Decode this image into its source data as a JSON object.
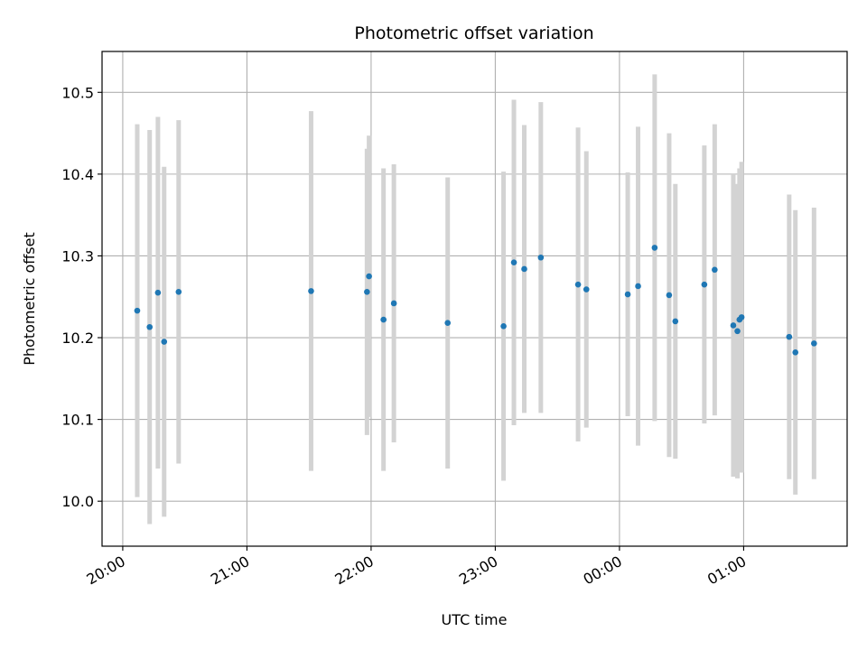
{
  "chart_data": {
    "type": "scatter",
    "title": "Photometric offset variation",
    "xlabel": "UTC time",
    "ylabel": "Photometric offset",
    "x_axis_kind": "time (hours, continuing past midnight)",
    "xlim": [
      "19:50",
      "25:50"
    ],
    "ylim": [
      9.945,
      10.55
    ],
    "x_ticks": [
      "20:00",
      "21:00",
      "22:00",
      "23:00",
      "00:00",
      "01:00"
    ],
    "y_ticks": [
      "10.0",
      "10.1",
      "10.2",
      "10.3",
      "10.4",
      "10.5"
    ],
    "grid": true,
    "colors": {
      "point": "#1f77b4",
      "errorbar": "#d3d3d3",
      "grid": "#b0b0b0"
    },
    "points": [
      {
        "time": "20:07",
        "y": 10.233,
        "err": 0.228
      },
      {
        "time": "20:13",
        "y": 10.213,
        "err": 0.241
      },
      {
        "time": "20:17",
        "y": 10.255,
        "err": 0.215
      },
      {
        "time": "20:20",
        "y": 10.195,
        "err": 0.214
      },
      {
        "time": "20:27",
        "y": 10.256,
        "err": 0.21
      },
      {
        "time": "21:31",
        "y": 10.257,
        "err": 0.22
      },
      {
        "time": "21:58",
        "y": 10.256,
        "err": 0.175
      },
      {
        "time": "21:59",
        "y": 10.275,
        "err": 0.172
      },
      {
        "time": "22:06",
        "y": 10.222,
        "err": 0.185
      },
      {
        "time": "22:11",
        "y": 10.242,
        "err": 0.17
      },
      {
        "time": "22:37",
        "y": 10.218,
        "err": 0.178
      },
      {
        "time": "23:04",
        "y": 10.214,
        "err": 0.189
      },
      {
        "time": "23:09",
        "y": 10.292,
        "err": 0.199
      },
      {
        "time": "23:14",
        "y": 10.284,
        "err": 0.176
      },
      {
        "time": "23:22",
        "y": 10.298,
        "err": 0.19
      },
      {
        "time": "23:40",
        "y": 10.265,
        "err": 0.192
      },
      {
        "time": "23:44",
        "y": 10.259,
        "err": 0.169
      },
      {
        "time": "24:04",
        "y": 10.253,
        "err": 0.149
      },
      {
        "time": "24:09",
        "y": 10.263,
        "err": 0.195
      },
      {
        "time": "24:17",
        "y": 10.31,
        "err": 0.212
      },
      {
        "time": "24:24",
        "y": 10.252,
        "err": 0.198
      },
      {
        "time": "24:27",
        "y": 10.22,
        "err": 0.168
      },
      {
        "time": "24:41",
        "y": 10.265,
        "err": 0.17
      },
      {
        "time": "24:46",
        "y": 10.283,
        "err": 0.178
      },
      {
        "time": "24:55",
        "y": 10.215,
        "err": 0.185
      },
      {
        "time": "24:57",
        "y": 10.208,
        "err": 0.18
      },
      {
        "time": "24:58",
        "y": 10.222,
        "err": 0.185
      },
      {
        "time": "24:59",
        "y": 10.225,
        "err": 0.19
      },
      {
        "time": "25:22",
        "y": 10.201,
        "err": 0.174
      },
      {
        "time": "25:25",
        "y": 10.182,
        "err": 0.174
      },
      {
        "time": "25:34",
        "y": 10.193,
        "err": 0.166
      }
    ]
  }
}
